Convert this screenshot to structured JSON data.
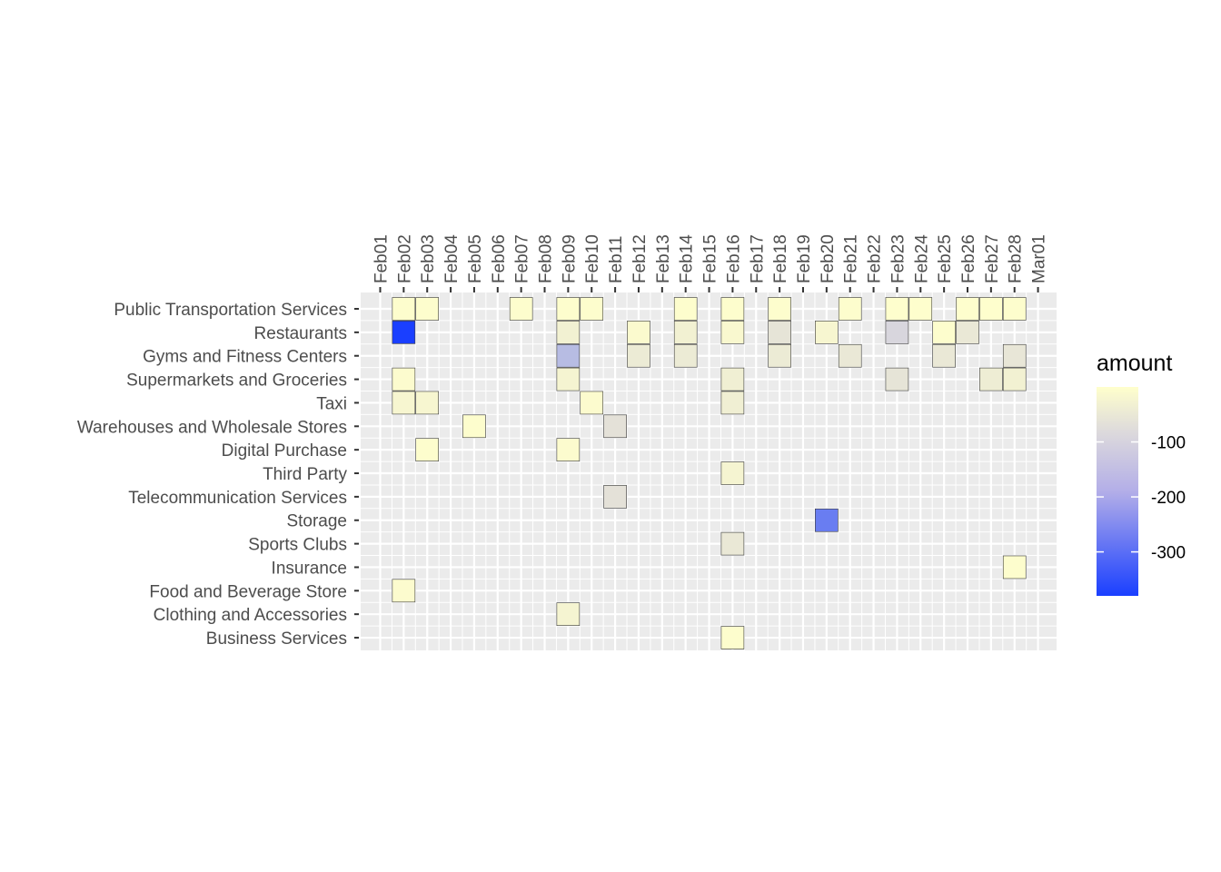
{
  "chart_data": {
    "type": "heatmap",
    "title": "",
    "xlabel": "",
    "ylabel": "",
    "x_categories": [
      "Feb01",
      "Feb02",
      "Feb03",
      "Feb04",
      "Feb05",
      "Feb06",
      "Feb07",
      "Feb08",
      "Feb09",
      "Feb10",
      "Feb11",
      "Feb12",
      "Feb13",
      "Feb14",
      "Feb15",
      "Feb16",
      "Feb17",
      "Feb18",
      "Feb19",
      "Feb20",
      "Feb21",
      "Feb22",
      "Feb23",
      "Feb24",
      "Feb25",
      "Feb26",
      "Feb27",
      "Feb28",
      "Mar01"
    ],
    "y_categories": [
      "Public Transportation Services",
      "Restaurants",
      "Gyms and Fitness Centers",
      "Supermarkets and Groceries",
      "Taxi",
      "Warehouses and Wholesale Stores",
      "Digital Purchase",
      "Third Party",
      "Telecommunication Services",
      "Storage",
      "Sports Clubs",
      "Insurance",
      "Food and Beverage Store",
      "Clothing and Accessories",
      "Business Services"
    ],
    "cells": [
      {
        "x": "Feb02",
        "y": "Public Transportation Services",
        "value": -5
      },
      {
        "x": "Feb03",
        "y": "Public Transportation Services",
        "value": -5
      },
      {
        "x": "Feb07",
        "y": "Public Transportation Services",
        "value": -5
      },
      {
        "x": "Feb09",
        "y": "Public Transportation Services",
        "value": -5
      },
      {
        "x": "Feb10",
        "y": "Public Transportation Services",
        "value": -5
      },
      {
        "x": "Feb14",
        "y": "Public Transportation Services",
        "value": -5
      },
      {
        "x": "Feb16",
        "y": "Public Transportation Services",
        "value": -5
      },
      {
        "x": "Feb18",
        "y": "Public Transportation Services",
        "value": -5
      },
      {
        "x": "Feb21",
        "y": "Public Transportation Services",
        "value": -5
      },
      {
        "x": "Feb23",
        "y": "Public Transportation Services",
        "value": -3
      },
      {
        "x": "Feb24",
        "y": "Public Transportation Services",
        "value": -3
      },
      {
        "x": "Feb26",
        "y": "Public Transportation Services",
        "value": -3
      },
      {
        "x": "Feb27",
        "y": "Public Transportation Services",
        "value": -3
      },
      {
        "x": "Feb28",
        "y": "Public Transportation Services",
        "value": -5
      },
      {
        "x": "Feb02",
        "y": "Restaurants",
        "value": -380
      },
      {
        "x": "Feb09",
        "y": "Restaurants",
        "value": -30
      },
      {
        "x": "Feb12",
        "y": "Restaurants",
        "value": -10
      },
      {
        "x": "Feb14",
        "y": "Restaurants",
        "value": -30
      },
      {
        "x": "Feb16",
        "y": "Restaurants",
        "value": -15
      },
      {
        "x": "Feb18",
        "y": "Restaurants",
        "value": -60
      },
      {
        "x": "Feb20",
        "y": "Restaurants",
        "value": -20
      },
      {
        "x": "Feb23",
        "y": "Restaurants",
        "value": -90
      },
      {
        "x": "Feb25",
        "y": "Restaurants",
        "value": -5
      },
      {
        "x": "Feb26",
        "y": "Restaurants",
        "value": -50
      },
      {
        "x": "Feb09",
        "y": "Gyms and Fitness Centers",
        "value": -140
      },
      {
        "x": "Feb12",
        "y": "Gyms and Fitness Centers",
        "value": -45
      },
      {
        "x": "Feb14",
        "y": "Gyms and Fitness Centers",
        "value": -45
      },
      {
        "x": "Feb18",
        "y": "Gyms and Fitness Centers",
        "value": -45
      },
      {
        "x": "Feb21",
        "y": "Gyms and Fitness Centers",
        "value": -50
      },
      {
        "x": "Feb25",
        "y": "Gyms and Fitness Centers",
        "value": -50
      },
      {
        "x": "Feb28",
        "y": "Gyms and Fitness Centers",
        "value": -55
      },
      {
        "x": "Feb02",
        "y": "Supermarkets and Groceries",
        "value": -8
      },
      {
        "x": "Feb09",
        "y": "Supermarkets and Groceries",
        "value": -25
      },
      {
        "x": "Feb16",
        "y": "Supermarkets and Groceries",
        "value": -35
      },
      {
        "x": "Feb23",
        "y": "Supermarkets and Groceries",
        "value": -60
      },
      {
        "x": "Feb27",
        "y": "Supermarkets and Groceries",
        "value": -40
      },
      {
        "x": "Feb28",
        "y": "Supermarkets and Groceries",
        "value": -30
      },
      {
        "x": "Feb02",
        "y": "Taxi",
        "value": -20
      },
      {
        "x": "Feb03",
        "y": "Taxi",
        "value": -20
      },
      {
        "x": "Feb10",
        "y": "Taxi",
        "value": -8
      },
      {
        "x": "Feb16",
        "y": "Taxi",
        "value": -35
      },
      {
        "x": "Feb05",
        "y": "Warehouses and Wholesale Stores",
        "value": -5
      },
      {
        "x": "Feb11",
        "y": "Warehouses and Wholesale Stores",
        "value": -65
      },
      {
        "x": "Feb03",
        "y": "Digital Purchase",
        "value": -5
      },
      {
        "x": "Feb09",
        "y": "Digital Purchase",
        "value": -8
      },
      {
        "x": "Feb16",
        "y": "Third Party",
        "value": -25
      },
      {
        "x": "Feb11",
        "y": "Telecommunication Services",
        "value": -65
      },
      {
        "x": "Feb20",
        "y": "Storage",
        "value": -260
      },
      {
        "x": "Feb16",
        "y": "Sports Clubs",
        "value": -50
      },
      {
        "x": "Feb28",
        "y": "Insurance",
        "value": -5
      },
      {
        "x": "Feb02",
        "y": "Food and Beverage Store",
        "value": -8
      },
      {
        "x": "Feb09",
        "y": "Clothing and Accessories",
        "value": -25
      },
      {
        "x": "Feb16",
        "y": "Business Services",
        "value": -5
      }
    ],
    "color_scale": {
      "low": "#1a3fff",
      "mid": "#dcd9dc",
      "high": "#ffffcc",
      "domain": [
        -380,
        0
      ]
    },
    "legend": {
      "title": "amount",
      "ticks": [
        {
          "value": -100,
          "label": "-100"
        },
        {
          "value": -200,
          "label": "-200"
        },
        {
          "value": -300,
          "label": "-300"
        }
      ],
      "placement": "right"
    },
    "grid": true
  }
}
